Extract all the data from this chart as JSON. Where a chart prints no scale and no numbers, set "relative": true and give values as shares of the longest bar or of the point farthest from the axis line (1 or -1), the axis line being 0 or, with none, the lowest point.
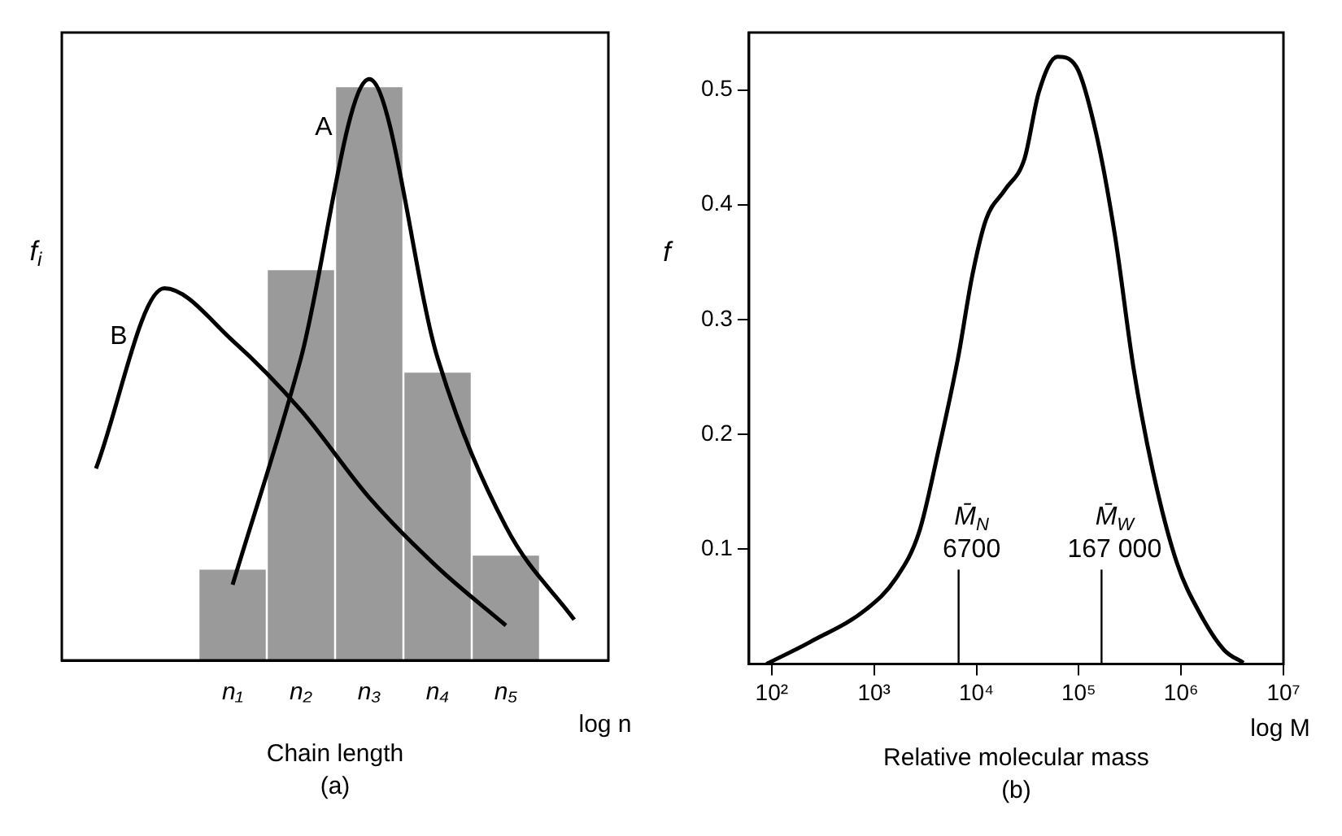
{
  "chart_data": [
    {
      "type": "bar",
      "relative": true,
      "xlabel": "Chain length",
      "ylabel": "f$_{i}$",
      "annotations": [
        "log n",
        "(a)"
      ],
      "categories": [
        null,
        null,
        "n₁",
        "n₂",
        "n₃",
        "n₄",
        "n₅",
        null
      ],
      "series": [
        {
          "type": "bar",
          "color": "#9a9a9a",
          "values": [
            null,
            null,
            0.156,
            0.671,
            0.986,
            0.495,
            0.18,
            null
          ]
        },
        {
          "type": "line",
          "name": "A",
          "color": "#000000",
          "values": [
            null,
            null,
            0.13,
            0.52,
            1.0,
            0.52,
            0.23,
            0.07
          ]
        },
        {
          "type": "line",
          "name": "B",
          "color": "#000000",
          "values": [
            0.33,
            0.64,
            0.55,
            0.43,
            0.28,
            0.16,
            0.06,
            null
          ]
        }
      ]
    },
    {
      "type": "line",
      "xlabel": "Relative molecular mass",
      "ylabel": "f",
      "annotations": [
        "log M",
        "(b)"
      ],
      "log": "x",
      "x": [
        89,
        236,
        850,
        1620,
        2760,
        4260,
        6600,
        9100,
        12400,
        19000,
        29500,
        40700,
        62000,
        95000,
        148000,
        226000,
        344000,
        530000,
        910000,
        1550000,
        2640000,
        4070000
      ],
      "xlim": [
        60,
        10000000
      ],
      "xticks": [
        {
          "value": 100,
          "label": "10²"
        },
        {
          "value": 1000,
          "label": "10³"
        },
        {
          "value": 10000,
          "label": "10⁴"
        },
        {
          "value": 100000,
          "label": "10⁵"
        },
        {
          "value": 1000000,
          "label": "10⁶"
        },
        {
          "value": 10000000,
          "label": "10⁷"
        }
      ],
      "ylim": [
        0,
        0.55
      ],
      "yticks": [
        0.1,
        0.2,
        0.3,
        0.4,
        0.5
      ],
      "series": [
        {
          "color": "#000000",
          "values": [
            0.0,
            0.019,
            0.048,
            0.074,
            0.115,
            0.186,
            0.266,
            0.338,
            0.387,
            0.413,
            0.44,
            0.498,
            0.529,
            0.52,
            0.462,
            0.373,
            0.257,
            0.168,
            0.088,
            0.043,
            0.012,
            0.001
          ]
        }
      ],
      "ref_lines": [
        {
          "axis": "x",
          "value": 6700,
          "label": "M̄$_{N}$\n6700",
          "color": "#000000"
        },
        {
          "axis": "x",
          "value": 167000,
          "label": "M̄$_{W}$\n167 000",
          "color": "#000000"
        }
      ]
    }
  ]
}
